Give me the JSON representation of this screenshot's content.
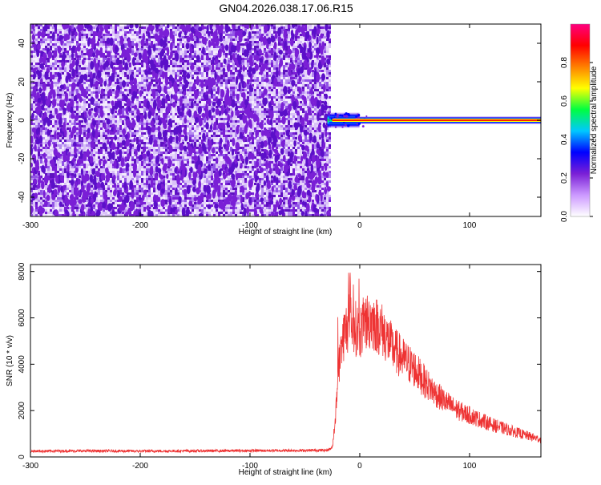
{
  "figure_title": "GN04.2026.038.17.06.R15",
  "chart_data": [
    {
      "type": "heatmap",
      "title": "",
      "xlabel": "Height of straight line (km)",
      "ylabel": "Frequency (Hz)",
      "xlim": [
        -300,
        165
      ],
      "ylim": [
        -50,
        50
      ],
      "xticks": [
        -300,
        -200,
        -100,
        0,
        100
      ],
      "yticks": [
        -40,
        -20,
        0,
        20,
        40
      ],
      "colorbar": {
        "label": "Normalized spectral amplitude",
        "range": [
          0,
          1
        ],
        "ticks": [
          0.0,
          0.2,
          0.4,
          0.6,
          0.8
        ],
        "tick_labels": [
          "0.0",
          "0.2",
          "0.4",
          "0.6",
          "0.8"
        ],
        "colormap": [
          "#ffffff",
          "#cc99ff",
          "#7a1fd6",
          "#0000ff",
          "#00c8ff",
          "#00ff40",
          "#ffff00",
          "#ff8000",
          "#ff0000",
          "#ff0080"
        ]
      },
      "regions": [
        {
          "x_range": [
            -300,
            -28
          ],
          "description": "broadband noise",
          "amplitude": [
            0.0,
            0.15
          ]
        },
        {
          "x_range": [
            -28,
            165
          ],
          "description": "narrow band near 0 Hz",
          "center_hz": 0,
          "amplitude": 1.0
        }
      ],
      "bg_color": "#ffffff",
      "noise_color": "#7a1fd6"
    },
    {
      "type": "line",
      "title": "",
      "xlabel": "Height of straight line (km)",
      "ylabel": "SNR (10 * v/v)",
      "xlim": [
        -300,
        165
      ],
      "ylim": [
        0,
        8300
      ],
      "xticks": [
        -300,
        -200,
        -100,
        0,
        100
      ],
      "yticks": [
        0,
        2000,
        4000,
        6000,
        8000
      ],
      "line_color": "#ee3333",
      "series": [
        {
          "x": [
            -300,
            -250,
            -200,
            -150,
            -100,
            -50,
            -30,
            -25,
            -22,
            -20,
            -15,
            -10,
            -5,
            0,
            5,
            10,
            20,
            30,
            40,
            50,
            60,
            70,
            80,
            90,
            100,
            110,
            120,
            130,
            140,
            150,
            165
          ],
          "y": [
            250,
            260,
            250,
            260,
            270,
            280,
            290,
            400,
            1800,
            3600,
            5200,
            5800,
            5600,
            5400,
            5800,
            5900,
            5500,
            4700,
            4200,
            3800,
            3200,
            2700,
            2300,
            2000,
            1800,
            1600,
            1400,
            1250,
            1100,
            950,
            750
          ]
        }
      ]
    }
  ]
}
